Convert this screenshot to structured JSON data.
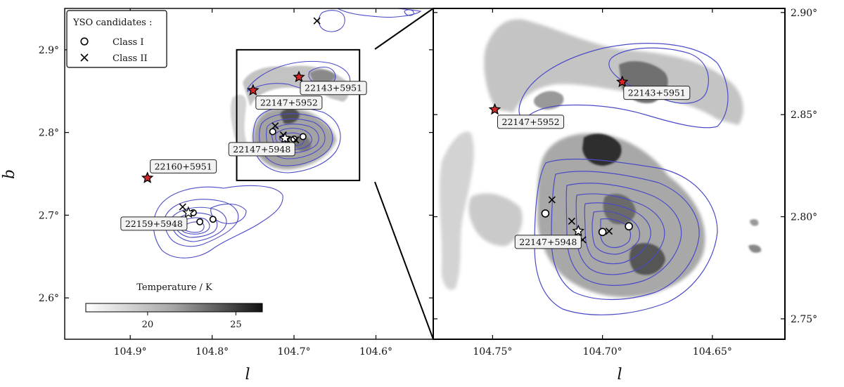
{
  "chart_data": [
    {
      "type": "scatter",
      "panel": "overview",
      "xlabel": "l",
      "ylabel": "b",
      "xlim": [
        104.98,
        104.53
      ],
      "ylim": [
        2.55,
        2.95
      ],
      "xticks": [
        104.9,
        104.8,
        104.7,
        104.6
      ],
      "xtick_labels": [
        "104.9°",
        "104.8°",
        "104.7°",
        "104.6°"
      ],
      "yticks": [
        2.6,
        2.7,
        2.8,
        2.9
      ],
      "ytick_labels": [
        "2.6°",
        "2.7°",
        "2.8°",
        "2.9°"
      ],
      "legend": {
        "title": "YSO candidates :",
        "entries": [
          {
            "marker": "circle",
            "label": "Class I"
          },
          {
            "marker": "cross",
            "label": "Class II"
          }
        ],
        "placement": "top-left"
      },
      "iras_sources": [
        {
          "label": "22143+5951",
          "l": 104.694,
          "b": 2.867
        },
        {
          "label": "22147+5952",
          "l": 104.75,
          "b": 2.851
        },
        {
          "label": "22160+5951",
          "l": 104.879,
          "b": 2.745
        }
      ],
      "labels_only": [
        {
          "label": "22147+5948",
          "l": 104.711,
          "b": 2.793
        },
        {
          "label": "22159+5948",
          "l": 104.829,
          "b": 2.703
        }
      ],
      "stars_white": [
        {
          "l": 104.711,
          "b": 2.793
        },
        {
          "l": 104.829,
          "b": 2.703
        }
      ],
      "class_i": [
        {
          "l": 104.726,
          "b": 2.801
        },
        {
          "l": 104.7,
          "b": 2.792
        },
        {
          "l": 104.689,
          "b": 2.795
        },
        {
          "l": 104.823,
          "b": 2.703
        },
        {
          "l": 104.815,
          "b": 2.692
        },
        {
          "l": 104.799,
          "b": 2.695
        }
      ],
      "class_ii": [
        {
          "l": 104.723,
          "b": 2.808
        },
        {
          "l": 104.713,
          "b": 2.797
        },
        {
          "l": 104.708,
          "b": 2.791
        },
        {
          "l": 104.698,
          "b": 2.791
        },
        {
          "l": 104.836,
          "b": 2.71
        },
        {
          "l": 104.672,
          "b": 2.935
        }
      ],
      "zoom_box": {
        "l": [
          104.62,
          104.77
        ],
        "b": [
          2.742,
          2.9
        ]
      },
      "colorbar": {
        "label": "Temperature / K",
        "ticks": [
          20,
          25
        ],
        "tick_labels": [
          "20",
          "25"
        ],
        "range": [
          16.5,
          26.5
        ],
        "colormap": "Greys",
        "placement": "bottom-left"
      },
      "contour_color": "#4b4bc8",
      "marker_red": "#d62728"
    },
    {
      "type": "scatter",
      "panel": "zoom",
      "xlabel": "l",
      "ylabel": "",
      "xlim": [
        104.777,
        104.617
      ],
      "ylim": [
        2.74,
        2.902
      ],
      "xticks": [
        104.75,
        104.7,
        104.65
      ],
      "xtick_labels": [
        "104.75°",
        "104.70°",
        "104.65°"
      ],
      "yticks": [
        2.75,
        2.8,
        2.85,
        2.9
      ],
      "ytick_labels": [
        "2.75°",
        "2.80°",
        "2.85°",
        "2.90°"
      ],
      "iras_sources": [
        {
          "label": "22143+5951",
          "l": 104.691,
          "b": 2.866
        },
        {
          "label": "22147+5952",
          "l": 104.749,
          "b": 2.8525
        }
      ],
      "labels_only": [
        {
          "label": "22147+5948",
          "l": 104.711,
          "b": 2.793
        }
      ],
      "stars_white": [
        {
          "l": 104.711,
          "b": 2.793
        }
      ],
      "class_i": [
        {
          "l": 104.726,
          "b": 2.8016
        },
        {
          "l": 104.7,
          "b": 2.7925
        },
        {
          "l": 104.688,
          "b": 2.7953
        }
      ],
      "class_ii": [
        {
          "l": 104.723,
          "b": 2.8083
        },
        {
          "l": 104.714,
          "b": 2.7978
        },
        {
          "l": 104.697,
          "b": 2.7929
        },
        {
          "l": 104.709,
          "b": 2.7887
        }
      ],
      "contour_color": "#4b4bc8",
      "marker_red": "#d62728"
    }
  ]
}
